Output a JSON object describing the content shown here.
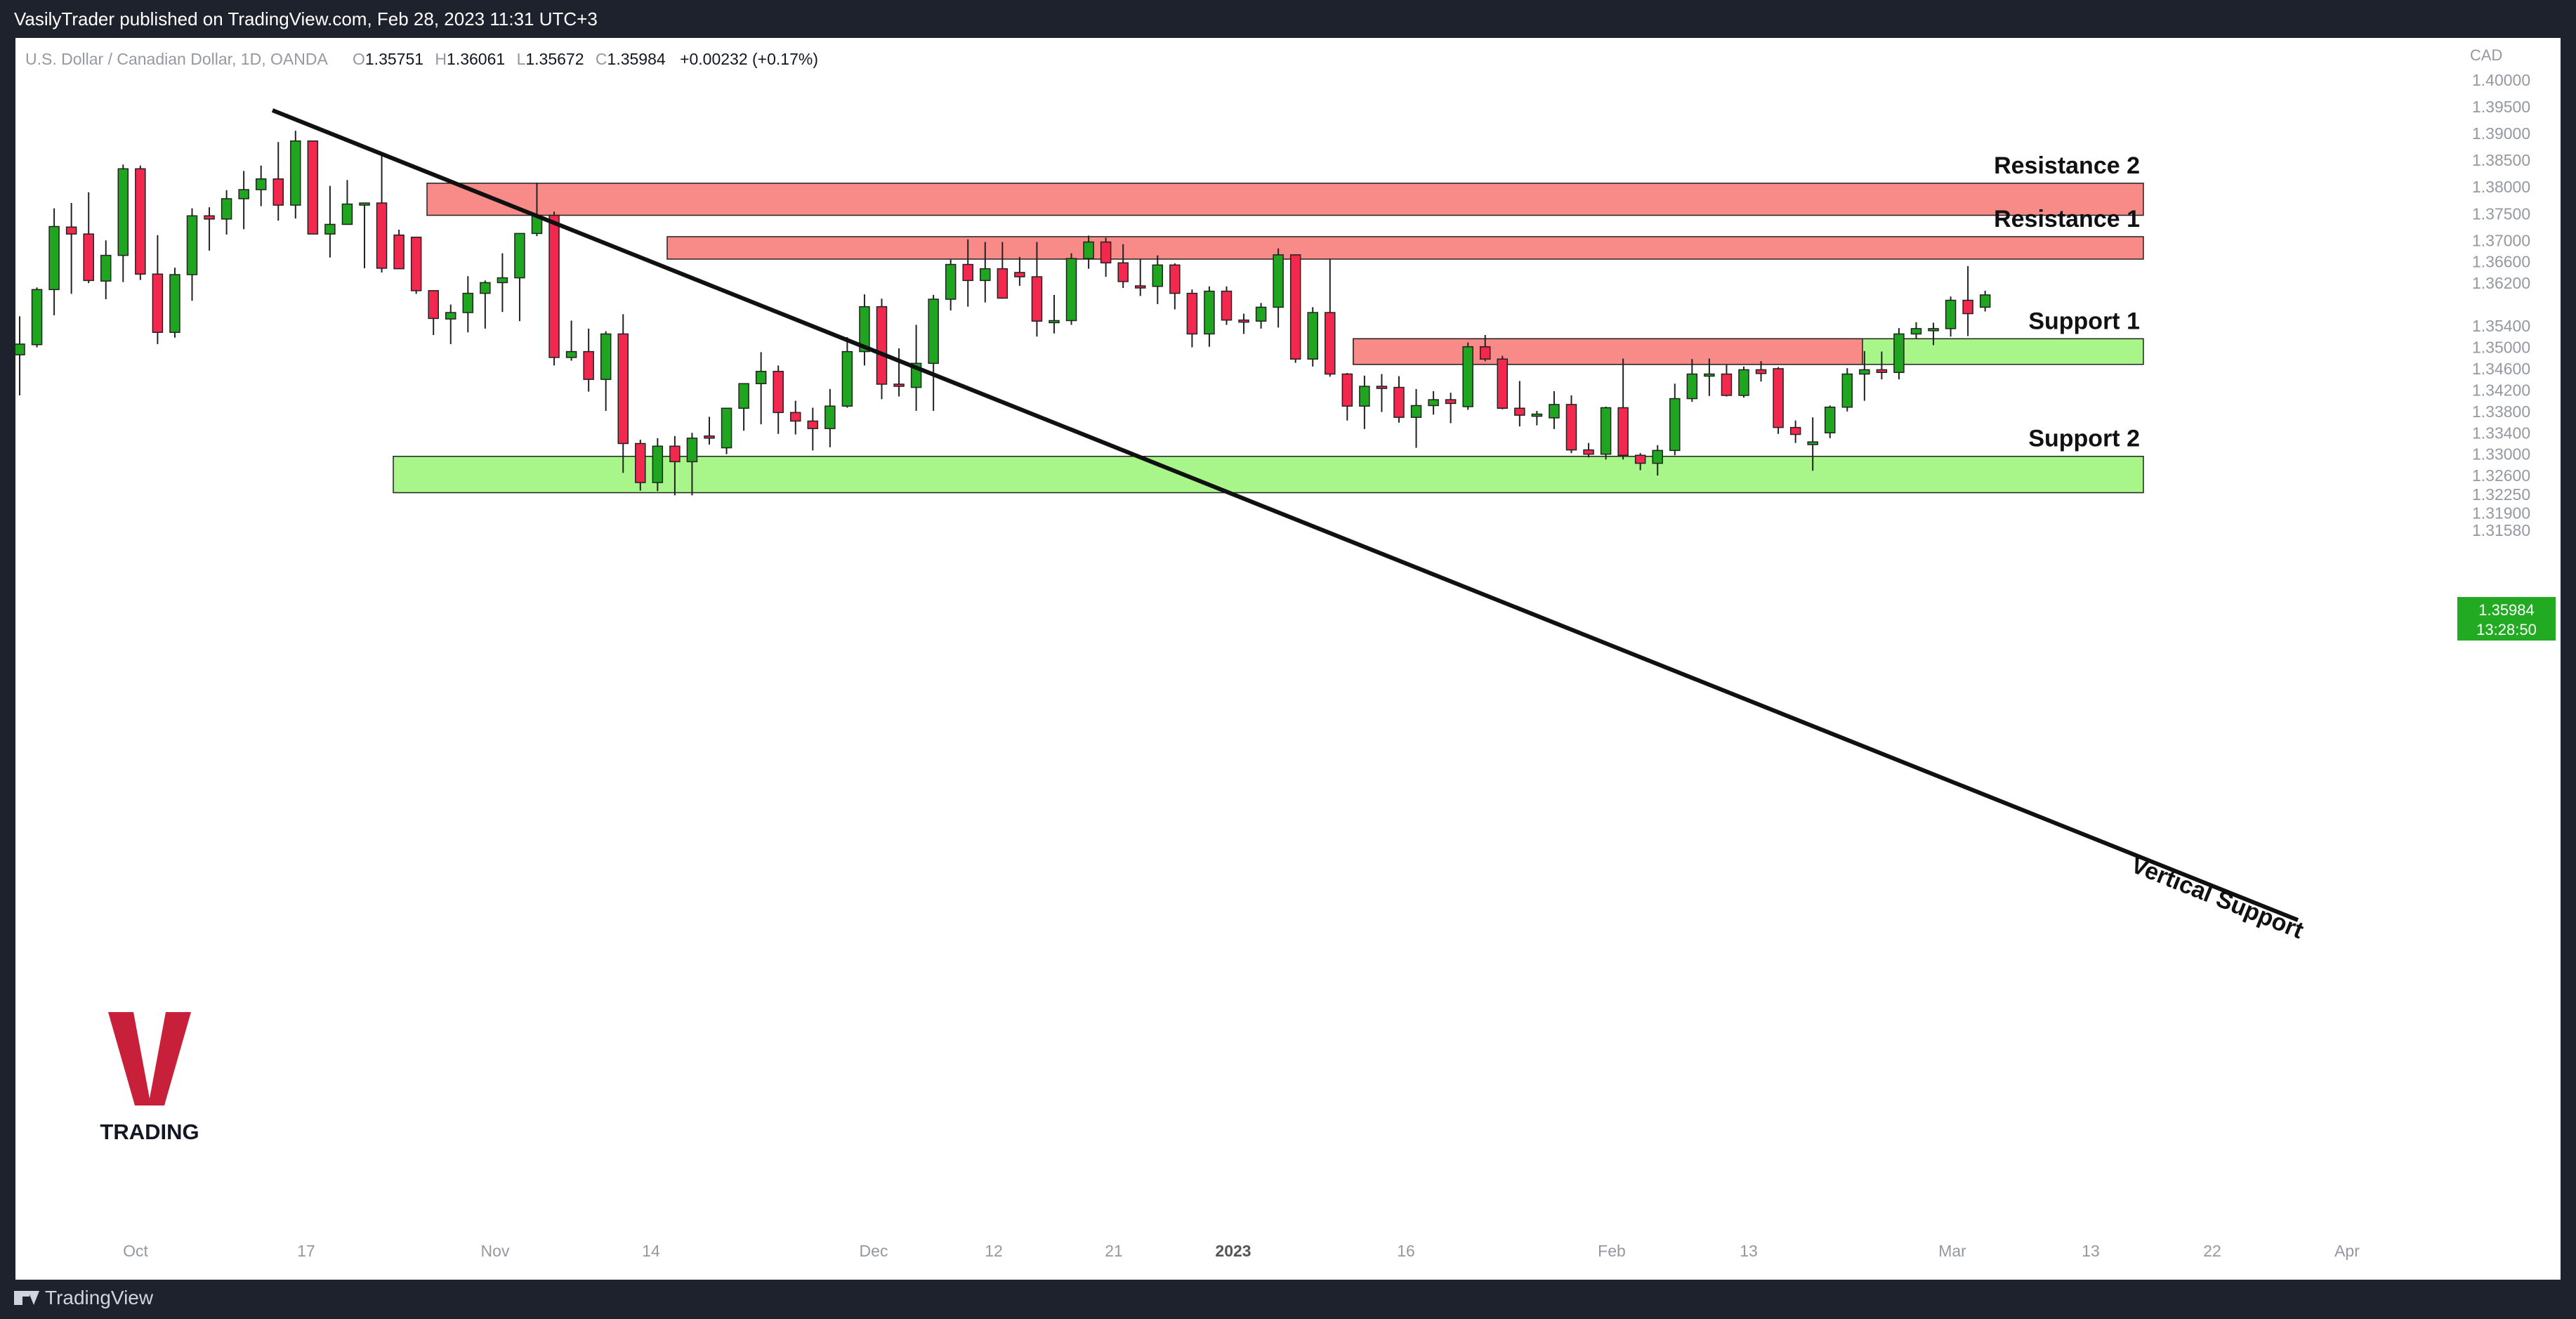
{
  "header": {
    "published": "VasilyTrader published on TradingView.com, Feb 28, 2023 11:31 UTC+3"
  },
  "legend": {
    "symbol": "U.S. Dollar / Canadian Dollar, 1D, OANDA",
    "o_label": "O",
    "o": "1.35751",
    "h_label": "H",
    "h": "1.36061",
    "l_label": "L",
    "l": "1.35672",
    "c_label": "C",
    "c": "1.35984",
    "change": "+0.00232 (+0.17%)"
  },
  "price_axis": {
    "currency": "CAD",
    "last_price": "1.35984",
    "countdown": "13:28:50"
  },
  "footer": {
    "brand": "TradingView"
  },
  "logo": {
    "letter": "V",
    "text": "TRADING"
  },
  "colors": {
    "up": "#1fa51f",
    "down": "#f2284f",
    "resistance_zone": "#f88a87",
    "support_zone": "#a8f58a",
    "trendline": "#111111",
    "last_price_badge": "#22ab22",
    "logo_red": "#c8203a"
  },
  "chart_data": {
    "type": "candlestick",
    "timeframe": "1D",
    "ylim": [
      1.3135,
      1.4025
    ],
    "y_ticks": [
      "1.40000",
      "1.39500",
      "1.39000",
      "1.38500",
      "1.38000",
      "1.37500",
      "1.37000",
      "1.36600",
      "1.36200",
      "1.35400",
      "1.35000",
      "1.34600",
      "1.34200",
      "1.33800",
      "1.33400",
      "1.33000",
      "1.32600",
      "1.32250",
      "1.31900",
      "1.31580"
    ],
    "x_ticks": [
      "Oct",
      "17",
      "Nov",
      "14",
      "Dec",
      "12",
      "21",
      "2023",
      "16",
      "Feb",
      "13",
      "Mar",
      "13",
      "22",
      "Apr"
    ],
    "candles": [
      {
        "o": 1.3486,
        "h": 1.3558,
        "l": 1.341,
        "c": 1.3506
      },
      {
        "o": 1.3505,
        "h": 1.3612,
        "l": 1.35,
        "c": 1.3608
      },
      {
        "o": 1.3608,
        "h": 1.376,
        "l": 1.356,
        "c": 1.3726
      },
      {
        "o": 1.3725,
        "h": 1.377,
        "l": 1.36,
        "c": 1.3712
      },
      {
        "o": 1.3712,
        "h": 1.379,
        "l": 1.362,
        "c": 1.3625
      },
      {
        "o": 1.3624,
        "h": 1.37,
        "l": 1.359,
        "c": 1.3672
      },
      {
        "o": 1.3672,
        "h": 1.3842,
        "l": 1.3622,
        "c": 1.3834
      },
      {
        "o": 1.3834,
        "h": 1.384,
        "l": 1.3626,
        "c": 1.3637
      },
      {
        "o": 1.3637,
        "h": 1.371,
        "l": 1.3506,
        "c": 1.3528
      },
      {
        "o": 1.3528,
        "h": 1.3649,
        "l": 1.3518,
        "c": 1.3636
      },
      {
        "o": 1.3636,
        "h": 1.376,
        "l": 1.3587,
        "c": 1.3746
      },
      {
        "o": 1.3746,
        "h": 1.3762,
        "l": 1.3681,
        "c": 1.374
      },
      {
        "o": 1.374,
        "h": 1.3794,
        "l": 1.3711,
        "c": 1.3778
      },
      {
        "o": 1.3778,
        "h": 1.383,
        "l": 1.3721,
        "c": 1.3795
      },
      {
        "o": 1.3795,
        "h": 1.384,
        "l": 1.3764,
        "c": 1.3815
      },
      {
        "o": 1.3815,
        "h": 1.3884,
        "l": 1.3737,
        "c": 1.3766
      },
      {
        "o": 1.3766,
        "h": 1.3905,
        "l": 1.3741,
        "c": 1.3886
      },
      {
        "o": 1.3886,
        "h": 1.3886,
        "l": 1.3716,
        "c": 1.3712
      },
      {
        "o": 1.3712,
        "h": 1.3802,
        "l": 1.3668,
        "c": 1.373
      },
      {
        "o": 1.373,
        "h": 1.3813,
        "l": 1.3737,
        "c": 1.3768
      },
      {
        "o": 1.3768,
        "h": 1.3768,
        "l": 1.3648,
        "c": 1.377
      },
      {
        "o": 1.377,
        "h": 1.386,
        "l": 1.364,
        "c": 1.3648
      },
      {
        "o": 1.371,
        "h": 1.372,
        "l": 1.3647,
        "c": 1.3647
      },
      {
        "o": 1.3706,
        "h": 1.3706,
        "l": 1.36,
        "c": 1.3606
      },
      {
        "o": 1.3606,
        "h": 1.3606,
        "l": 1.3523,
        "c": 1.3554
      },
      {
        "o": 1.3553,
        "h": 1.358,
        "l": 1.3506,
        "c": 1.3565
      },
      {
        "o": 1.3565,
        "h": 1.3633,
        "l": 1.3528,
        "c": 1.3601
      },
      {
        "o": 1.3601,
        "h": 1.3625,
        "l": 1.3535,
        "c": 1.3621
      },
      {
        "o": 1.3621,
        "h": 1.3676,
        "l": 1.3566,
        "c": 1.363
      },
      {
        "o": 1.363,
        "h": 1.3711,
        "l": 1.3549,
        "c": 1.3713
      },
      {
        "o": 1.3713,
        "h": 1.3808,
        "l": 1.3708,
        "c": 1.3747
      },
      {
        "o": 1.3747,
        "h": 1.3754,
        "l": 1.3466,
        "c": 1.3481
      },
      {
        "o": 1.3481,
        "h": 1.355,
        "l": 1.3475,
        "c": 1.3492
      },
      {
        "o": 1.3492,
        "h": 1.3535,
        "l": 1.3417,
        "c": 1.344
      },
      {
        "o": 1.344,
        "h": 1.353,
        "l": 1.3381,
        "c": 1.3525
      },
      {
        "o": 1.3525,
        "h": 1.3562,
        "l": 1.3265,
        "c": 1.332
      },
      {
        "o": 1.332,
        "h": 1.3327,
        "l": 1.3232,
        "c": 1.3247
      },
      {
        "o": 1.3247,
        "h": 1.333,
        "l": 1.3231,
        "c": 1.3315
      },
      {
        "o": 1.3315,
        "h": 1.3334,
        "l": 1.3223,
        "c": 1.3286
      },
      {
        "o": 1.3286,
        "h": 1.334,
        "l": 1.3223,
        "c": 1.333
      },
      {
        "o": 1.3334,
        "h": 1.337,
        "l": 1.3318,
        "c": 1.3332
      },
      {
        "o": 1.3312,
        "h": 1.3383,
        "l": 1.33,
        "c": 1.3386
      },
      {
        "o": 1.3386,
        "h": 1.3429,
        "l": 1.3344,
        "c": 1.3432
      },
      {
        "o": 1.3432,
        "h": 1.3491,
        "l": 1.3356,
        "c": 1.3455
      },
      {
        "o": 1.3455,
        "h": 1.3466,
        "l": 1.3338,
        "c": 1.3378
      },
      {
        "o": 1.3378,
        "h": 1.34,
        "l": 1.3337,
        "c": 1.3362
      },
      {
        "o": 1.3362,
        "h": 1.3387,
        "l": 1.3307,
        "c": 1.3348
      },
      {
        "o": 1.3348,
        "h": 1.3422,
        "l": 1.3313,
        "c": 1.339
      },
      {
        "o": 1.339,
        "h": 1.3519,
        "l": 1.3387,
        "c": 1.3492
      },
      {
        "o": 1.3492,
        "h": 1.3599,
        "l": 1.3466,
        "c": 1.3576
      },
      {
        "o": 1.3576,
        "h": 1.3591,
        "l": 1.3403,
        "c": 1.3431
      },
      {
        "o": 1.3431,
        "h": 1.3498,
        "l": 1.3408,
        "c": 1.343
      },
      {
        "o": 1.3425,
        "h": 1.3542,
        "l": 1.3381,
        "c": 1.347
      },
      {
        "o": 1.347,
        "h": 1.3598,
        "l": 1.3381,
        "c": 1.359
      },
      {
        "o": 1.359,
        "h": 1.3664,
        "l": 1.3569,
        "c": 1.3655
      },
      {
        "o": 1.3655,
        "h": 1.3702,
        "l": 1.3576,
        "c": 1.3625
      },
      {
        "o": 1.3625,
        "h": 1.3697,
        "l": 1.3584,
        "c": 1.3647
      },
      {
        "o": 1.3647,
        "h": 1.3697,
        "l": 1.3591,
        "c": 1.3592
      },
      {
        "o": 1.364,
        "h": 1.3669,
        "l": 1.3615,
        "c": 1.3632
      },
      {
        "o": 1.3632,
        "h": 1.3697,
        "l": 1.352,
        "c": 1.3549
      },
      {
        "o": 1.3549,
        "h": 1.3598,
        "l": 1.3526,
        "c": 1.355
      },
      {
        "o": 1.355,
        "h": 1.3676,
        "l": 1.3542,
        "c": 1.3666
      },
      {
        "o": 1.3666,
        "h": 1.3709,
        "l": 1.3647,
        "c": 1.3697
      },
      {
        "o": 1.3697,
        "h": 1.3705,
        "l": 1.3632,
        "c": 1.3658
      },
      {
        "o": 1.3658,
        "h": 1.3693,
        "l": 1.3611,
        "c": 1.3623
      },
      {
        "o": 1.3615,
        "h": 1.3665,
        "l": 1.3596,
        "c": 1.3614
      },
      {
        "o": 1.3614,
        "h": 1.3672,
        "l": 1.3581,
        "c": 1.3654
      },
      {
        "o": 1.3654,
        "h": 1.3657,
        "l": 1.3571,
        "c": 1.3601
      },
      {
        "o": 1.3601,
        "h": 1.3608,
        "l": 1.35,
        "c": 1.3525
      },
      {
        "o": 1.3525,
        "h": 1.3614,
        "l": 1.3501,
        "c": 1.3605
      },
      {
        "o": 1.3605,
        "h": 1.3614,
        "l": 1.3542,
        "c": 1.3551
      },
      {
        "o": 1.3551,
        "h": 1.3563,
        "l": 1.3525,
        "c": 1.3549
      },
      {
        "o": 1.3549,
        "h": 1.3583,
        "l": 1.3535,
        "c": 1.3575
      },
      {
        "o": 1.3575,
        "h": 1.3685,
        "l": 1.3537,
        "c": 1.3673
      },
      {
        "o": 1.3673,
        "h": 1.3674,
        "l": 1.3471,
        "c": 1.3478
      },
      {
        "o": 1.3478,
        "h": 1.3575,
        "l": 1.3464,
        "c": 1.3565
      },
      {
        "o": 1.3565,
        "h": 1.3665,
        "l": 1.3445,
        "c": 1.345
      },
      {
        "o": 1.345,
        "h": 1.3452,
        "l": 1.3363,
        "c": 1.339
      },
      {
        "o": 1.339,
        "h": 1.3447,
        "l": 1.3347,
        "c": 1.3427
      },
      {
        "o": 1.3427,
        "h": 1.345,
        "l": 1.3379,
        "c": 1.3425
      },
      {
        "o": 1.3425,
        "h": 1.3446,
        "l": 1.3359,
        "c": 1.3369
      },
      {
        "o": 1.3369,
        "h": 1.3422,
        "l": 1.3312,
        "c": 1.3391
      },
      {
        "o": 1.3391,
        "h": 1.3418,
        "l": 1.3374,
        "c": 1.3402
      },
      {
        "o": 1.3402,
        "h": 1.3415,
        "l": 1.3358,
        "c": 1.3395
      },
      {
        "o": 1.3389,
        "h": 1.3509,
        "l": 1.3383,
        "c": 1.3501
      },
      {
        "o": 1.3501,
        "h": 1.3523,
        "l": 1.3474,
        "c": 1.3478
      },
      {
        "o": 1.3478,
        "h": 1.3484,
        "l": 1.3384,
        "c": 1.3386
      },
      {
        "o": 1.3386,
        "h": 1.3437,
        "l": 1.3352,
        "c": 1.3373
      },
      {
        "o": 1.3373,
        "h": 1.3381,
        "l": 1.3354,
        "c": 1.3375
      },
      {
        "o": 1.3368,
        "h": 1.3418,
        "l": 1.3347,
        "c": 1.3393
      },
      {
        "o": 1.3393,
        "h": 1.341,
        "l": 1.3302,
        "c": 1.3308
      },
      {
        "o": 1.3308,
        "h": 1.3321,
        "l": 1.3294,
        "c": 1.33
      },
      {
        "o": 1.33,
        "h": 1.3389,
        "l": 1.329,
        "c": 1.3387
      },
      {
        "o": 1.3387,
        "h": 1.3479,
        "l": 1.329,
        "c": 1.3298
      },
      {
        "o": 1.3298,
        "h": 1.3302,
        "l": 1.327,
        "c": 1.3283
      },
      {
        "o": 1.3283,
        "h": 1.3317,
        "l": 1.326,
        "c": 1.3307
      },
      {
        "o": 1.3307,
        "h": 1.3432,
        "l": 1.3298,
        "c": 1.3404
      },
      {
        "o": 1.3404,
        "h": 1.3478,
        "l": 1.3398,
        "c": 1.345
      },
      {
        "o": 1.345,
        "h": 1.3479,
        "l": 1.3409,
        "c": 1.345
      },
      {
        "o": 1.345,
        "h": 1.3467,
        "l": 1.3408,
        "c": 1.341
      },
      {
        "o": 1.341,
        "h": 1.3464,
        "l": 1.3406,
        "c": 1.3458
      },
      {
        "o": 1.3458,
        "h": 1.3474,
        "l": 1.3436,
        "c": 1.3451
      },
      {
        "o": 1.346,
        "h": 1.3463,
        "l": 1.3338,
        "c": 1.335
      },
      {
        "o": 1.335,
        "h": 1.3363,
        "l": 1.3321,
        "c": 1.3337
      },
      {
        "o": 1.3318,
        "h": 1.3369,
        "l": 1.3269,
        "c": 1.3323
      },
      {
        "o": 1.334,
        "h": 1.3391,
        "l": 1.333,
        "c": 1.3388
      },
      {
        "o": 1.3388,
        "h": 1.3461,
        "l": 1.338,
        "c": 1.345
      },
      {
        "o": 1.345,
        "h": 1.3493,
        "l": 1.34,
        "c": 1.3458
      },
      {
        "o": 1.3458,
        "h": 1.3492,
        "l": 1.344,
        "c": 1.3453
      },
      {
        "o": 1.3453,
        "h": 1.3536,
        "l": 1.344,
        "c": 1.3525
      },
      {
        "o": 1.3525,
        "h": 1.3547,
        "l": 1.3517,
        "c": 1.3535
      },
      {
        "o": 1.3535,
        "h": 1.3546,
        "l": 1.3504,
        "c": 1.3535
      },
      {
        "o": 1.3535,
        "h": 1.3595,
        "l": 1.352,
        "c": 1.3588
      },
      {
        "o": 1.3588,
        "h": 1.3652,
        "l": 1.3521,
        "c": 1.3563
      },
      {
        "o": 1.3575,
        "h": 1.3606,
        "l": 1.3567,
        "c": 1.3598
      }
    ],
    "zones": [
      {
        "name": "Resistance 2",
        "from": 1.3747,
        "to": 1.3807,
        "type": "resistance"
      },
      {
        "name": "Resistance 1",
        "from": 1.3665,
        "to": 1.3707,
        "type": "resistance"
      },
      {
        "name": "Support 1",
        "from": 1.3468,
        "to": 1.3516,
        "type": "support"
      },
      {
        "name": "Support 2",
        "from": 1.3228,
        "to": 1.3296,
        "type": "support"
      }
    ],
    "annotations": {
      "trendline_label": "Vertical Support",
      "red_overlay_label": ""
    }
  }
}
